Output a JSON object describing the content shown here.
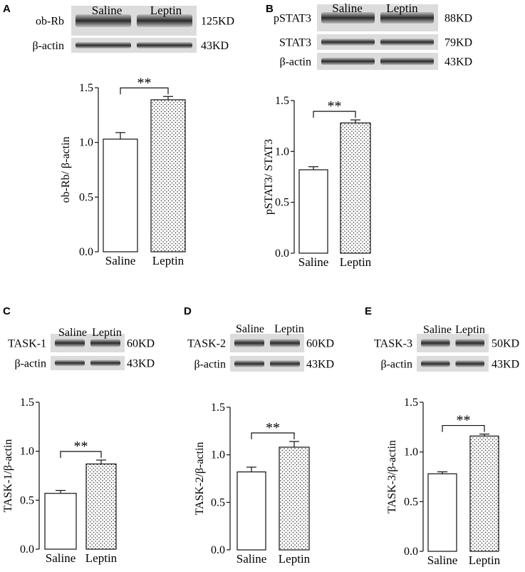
{
  "panels": [
    {
      "id": "A",
      "label": "A",
      "blot": {
        "lanes": [
          "Saline",
          "Leptin"
        ],
        "rows": [
          {
            "protein": "ob-Rb",
            "size": "125KD"
          },
          {
            "protein": "β-actin",
            "size": "43KD"
          }
        ]
      },
      "chart_data": {
        "type": "bar",
        "categories": [
          "Saline",
          "Leptin"
        ],
        "values": [
          1.03,
          1.39
        ],
        "errors": [
          0.06,
          0.03
        ],
        "ylabel": "ob-Rb/ β-actin",
        "xlabel": "",
        "ylim": [
          0,
          1.5
        ],
        "yticks": [
          "0.0",
          "0.5",
          "1.0",
          "1.5"
        ],
        "significance": "**"
      }
    },
    {
      "id": "B",
      "label": "B",
      "blot": {
        "lanes": [
          "Saline",
          "Leptin"
        ],
        "rows": [
          {
            "protein": "pSTAT3",
            "size": "88KD"
          },
          {
            "protein": "STAT3",
            "size": "79KD"
          },
          {
            "protein": "β-actin",
            "size": "43KD"
          }
        ]
      },
      "chart_data": {
        "type": "bar",
        "categories": [
          "Saline",
          "Leptin"
        ],
        "values": [
          0.82,
          1.28
        ],
        "errors": [
          0.03,
          0.03
        ],
        "ylabel": "pSTAT3/ STAT3",
        "xlabel": "",
        "ylim": [
          0,
          1.5
        ],
        "yticks": [
          "0.0",
          "0.5",
          "1.0",
          "1.5"
        ],
        "significance": "**"
      }
    },
    {
      "id": "C",
      "label": "C",
      "blot": {
        "lanes": [
          "Saline",
          "Leptin"
        ],
        "rows": [
          {
            "protein": "TASK-1",
            "size": "60KD"
          },
          {
            "protein": "β-actin",
            "size": "43KD"
          }
        ]
      },
      "chart_data": {
        "type": "bar",
        "categories": [
          "Saline",
          "Leptin"
        ],
        "values": [
          0.57,
          0.87
        ],
        "errors": [
          0.03,
          0.04
        ],
        "ylabel": "TASK-1/β-actin",
        "xlabel": "",
        "ylim": [
          0,
          1.5
        ],
        "yticks": [
          "0.0",
          "0.5",
          "1.0",
          "1.5"
        ],
        "significance": "**"
      }
    },
    {
      "id": "D",
      "label": "D",
      "blot": {
        "lanes": [
          "Saline",
          "Leptin"
        ],
        "rows": [
          {
            "protein": "TASK-2",
            "size": "60KD"
          },
          {
            "protein": "β-actin",
            "size": "43KD"
          }
        ]
      },
      "chart_data": {
        "type": "bar",
        "categories": [
          "Saline",
          "Leptin"
        ],
        "values": [
          0.82,
          1.08
        ],
        "errors": [
          0.05,
          0.06
        ],
        "ylabel": "TASK-2/β-actin",
        "xlabel": "",
        "ylim": [
          0,
          1.5
        ],
        "yticks": [
          "0.0",
          "0.5",
          "1.0",
          "1.5"
        ],
        "significance": "**"
      }
    },
    {
      "id": "E",
      "label": "E",
      "blot": {
        "lanes": [
          "Saline",
          "Leptin"
        ],
        "rows": [
          {
            "protein": "TASK-3",
            "size": "50KD"
          },
          {
            "protein": "β-actin",
            "size": "43KD"
          }
        ]
      },
      "chart_data": {
        "type": "bar",
        "categories": [
          "Saline",
          "Leptin"
        ],
        "values": [
          0.78,
          1.16
        ],
        "errors": [
          0.02,
          0.02
        ],
        "ylabel": "TASK-3/β-actin",
        "xlabel": "",
        "ylim": [
          0,
          1.5
        ],
        "yticks": [
          "0.0",
          "0.5",
          "1.0",
          "1.5"
        ],
        "significance": "**"
      }
    }
  ],
  "colors": {
    "axis": "#111111",
    "saline_fill": "#ffffff",
    "leptin_fill": "#ffffff",
    "leptin_dots": "#222222",
    "blot_bg": "#dcdcdc",
    "blot_band": "#3a3a3a"
  }
}
